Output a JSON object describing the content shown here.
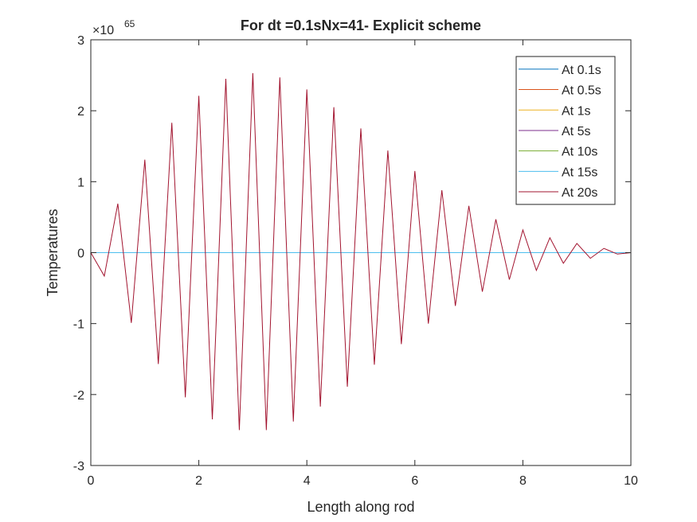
{
  "chart_data": {
    "type": "line",
    "title": "For dt =0.1sNx=41- Explicit scheme",
    "xlabel": "Length along rod",
    "ylabel": "Temperatures",
    "exponent_base": "×10",
    "exponent_power": "65",
    "xlim": [
      0,
      10
    ],
    "ylim": [
      -3,
      3
    ],
    "xticks": [
      0,
      2,
      4,
      6,
      8,
      10
    ],
    "yticks": [
      -3,
      -2,
      -1,
      0,
      1,
      2,
      3
    ],
    "grid": false,
    "legend_position": "top-right",
    "x": [
      0,
      0.25,
      0.5,
      0.75,
      1,
      1.25,
      1.5,
      1.75,
      2,
      2.25,
      2.5,
      2.75,
      3,
      3.25,
      3.5,
      3.75,
      4,
      4.25,
      4.5,
      4.75,
      5,
      5.25,
      5.5,
      5.75,
      6,
      6.25,
      6.5,
      6.75,
      7,
      7.25,
      7.5,
      7.75,
      8,
      8.25,
      8.5,
      8.75,
      9,
      9.25,
      9.5,
      9.75,
      10
    ],
    "series": [
      {
        "name": "At 0.1s",
        "color": "#0072BD",
        "values": [
          0,
          0,
          0,
          0,
          0,
          0,
          0,
          0,
          0,
          0,
          0,
          0,
          0,
          0,
          0,
          0,
          0,
          0,
          0,
          0,
          0,
          0,
          0,
          0,
          0,
          0,
          0,
          0,
          0,
          0,
          0,
          0,
          0,
          0,
          0,
          0,
          0,
          0,
          0,
          0,
          0
        ]
      },
      {
        "name": "At 0.5s",
        "color": "#D95319",
        "values": [
          0,
          0,
          0,
          0,
          0,
          0,
          0,
          0,
          0,
          0,
          0,
          0,
          0,
          0,
          0,
          0,
          0,
          0,
          0,
          0,
          0,
          0,
          0,
          0,
          0,
          0,
          0,
          0,
          0,
          0,
          0,
          0,
          0,
          0,
          0,
          0,
          0,
          0,
          0,
          0,
          0
        ]
      },
      {
        "name": "At 1s",
        "color": "#EDB120",
        "values": [
          0,
          0,
          0,
          0,
          0,
          0,
          0,
          0,
          0,
          0,
          0,
          0,
          0,
          0,
          0,
          0,
          0,
          0,
          0,
          0,
          0,
          0,
          0,
          0,
          0,
          0,
          0,
          0,
          0,
          0,
          0,
          0,
          0,
          0,
          0,
          0,
          0,
          0,
          0,
          0,
          0
        ]
      },
      {
        "name": "At 5s",
        "color": "#7E2F8E",
        "values": [
          0,
          0,
          0,
          0,
          0,
          0,
          0,
          0,
          0,
          0,
          0,
          0,
          0,
          0,
          0,
          0,
          0,
          0,
          0,
          0,
          0,
          0,
          0,
          0,
          0,
          0,
          0,
          0,
          0,
          0,
          0,
          0,
          0,
          0,
          0,
          0,
          0,
          0,
          0,
          0,
          0
        ]
      },
      {
        "name": "At 10s",
        "color": "#77AC30",
        "values": [
          0,
          0,
          0,
          0,
          0,
          0,
          0,
          0,
          0,
          0,
          0,
          0,
          0,
          0,
          0,
          0,
          0,
          0,
          0,
          0,
          0,
          0,
          0,
          0,
          0,
          0,
          0,
          0,
          0,
          0,
          0,
          0,
          0,
          0,
          0,
          0,
          0,
          0,
          0,
          0,
          0
        ]
      },
      {
        "name": "At 15s",
        "color": "#4DBEEE",
        "values": [
          0,
          0,
          0,
          0,
          0,
          0,
          0,
          0,
          0,
          0,
          0,
          0,
          0,
          0,
          0,
          0,
          0,
          0,
          0,
          0,
          0,
          0,
          0,
          0,
          0,
          0,
          0,
          0,
          0,
          0,
          0,
          0,
          0,
          0,
          0,
          0,
          0,
          0,
          0,
          0,
          0
        ]
      },
      {
        "name": "At 20s",
        "color": "#A2142F",
        "values": [
          0,
          -0.33,
          0.69,
          -0.99,
          1.31,
          -1.57,
          1.83,
          -2.04,
          2.21,
          -2.35,
          2.45,
          -2.5,
          2.53,
          -2.5,
          2.47,
          -2.38,
          2.3,
          -2.17,
          2.05,
          -1.89,
          1.75,
          -1.58,
          1.44,
          -1.29,
          1.15,
          -1.0,
          0.88,
          -0.75,
          0.66,
          -0.55,
          0.47,
          -0.38,
          0.32,
          -0.25,
          0.21,
          -0.15,
          0.13,
          -0.08,
          0.06,
          -0.02,
          0
        ]
      }
    ]
  }
}
